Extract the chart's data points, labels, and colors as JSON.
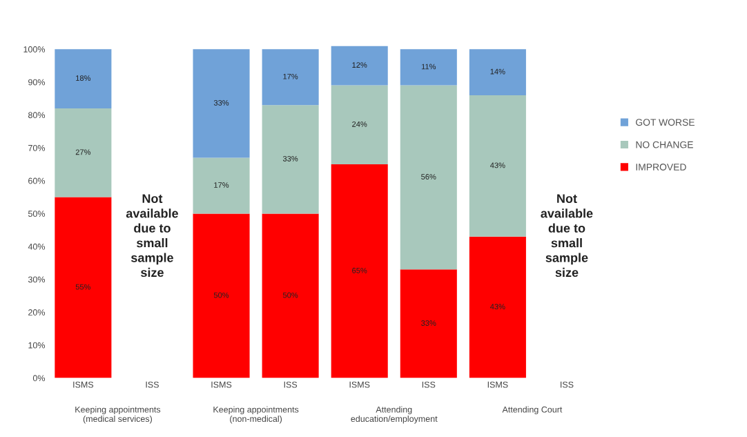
{
  "chart_data": {
    "type": "bar",
    "stacked": true,
    "categories": [
      "ISMS",
      "ISS",
      "ISMS",
      "ISS",
      "ISMS",
      "ISS",
      "ISMS",
      "ISS"
    ],
    "series": [
      {
        "name": "IMPROVED",
        "color": "#ff0000",
        "values": [
          55,
          null,
          50,
          50,
          65,
          33,
          43,
          null
        ],
        "value_labels": [
          "55%",
          null,
          "50%",
          "50%",
          "65%",
          "33%",
          "43%",
          null
        ]
      },
      {
        "name": "NO CHANGE",
        "color": "#a8c8bc",
        "values": [
          27,
          null,
          17,
          33,
          24,
          56,
          43,
          null
        ],
        "value_labels": [
          "27%",
          null,
          "17%",
          "33%",
          "24%",
          "56%",
          "43%",
          null
        ]
      },
      {
        "name": "GOT WORSE",
        "color": "#70a2d8",
        "values": [
          18,
          null,
          33,
          17,
          12,
          11,
          14,
          null
        ],
        "value_labels": [
          "18%",
          null,
          "33%",
          "17%",
          "12%",
          "11%",
          "14%",
          null
        ]
      }
    ],
    "ylim": [
      0,
      101
    ],
    "yticks": [
      {
        "value": 0,
        "label": "0%"
      },
      {
        "value": 10,
        "label": "10%"
      },
      {
        "value": 20,
        "label": "20%"
      },
      {
        "value": 30,
        "label": "30%"
      },
      {
        "value": 40,
        "label": "40%"
      },
      {
        "value": 50,
        "label": "50%"
      },
      {
        "value": 60,
        "label": "60%"
      },
      {
        "value": 70,
        "label": "70%"
      },
      {
        "value": 80,
        "label": "80%"
      },
      {
        "value": 90,
        "label": "90%"
      },
      {
        "value": 100,
        "label": "100%"
      }
    ],
    "grid": false,
    "legend": "right",
    "annotations": [
      "Keeping appointments\n(medical services)",
      "Keeping appointments\n(non-medical)",
      "Attending\neducation/employment",
      "Attending Court",
      "Not\navailable\ndue to\nsmall\nsample\nsize",
      "Not\navailable\ndue to\nsmall\nsample\nsize"
    ]
  }
}
